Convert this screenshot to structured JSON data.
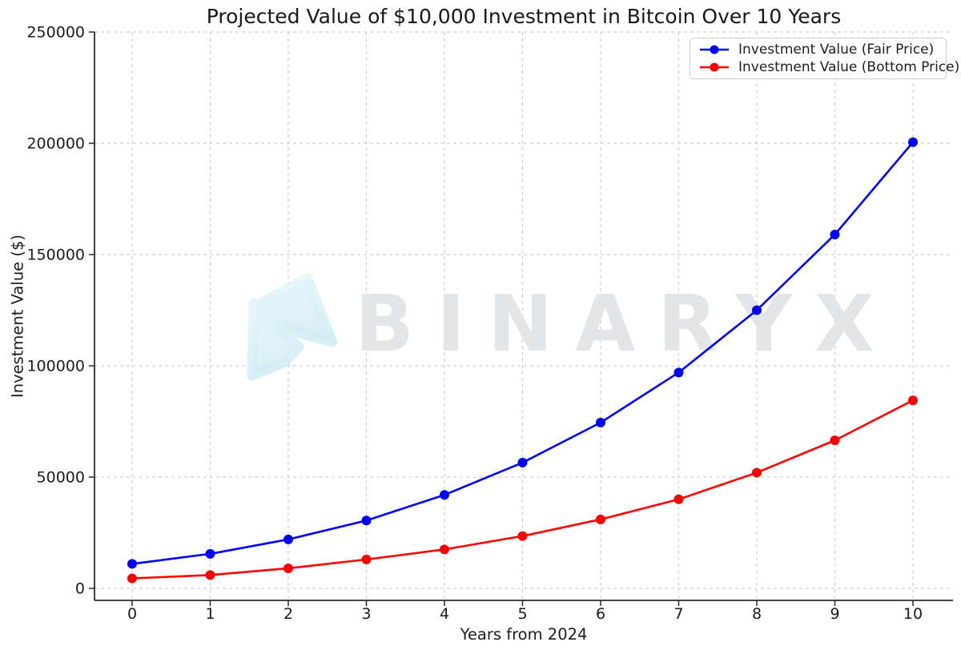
{
  "title": "Projected Value of $10,000 Investment in Bitcoin Over 10 Years",
  "watermark": {
    "text": "BINARYX"
  },
  "chart_data": {
    "type": "line",
    "title": "Projected Value of $10,000 Investment in Bitcoin Over 10 Years",
    "xlabel": "Years from 2024",
    "ylabel": "Investment Value ($)",
    "x": [
      0,
      1,
      2,
      3,
      4,
      5,
      6,
      7,
      8,
      9,
      10
    ],
    "series": [
      {
        "name": "Investment Value (Fair Price)",
        "color": "#0000ff",
        "values": [
          11000,
          15500,
          22000,
          30500,
          42000,
          56500,
          74500,
          97000,
          125000,
          159000,
          200500
        ]
      },
      {
        "name": "Investment Value (Bottom Price)",
        "color": "#ff0000",
        "values": [
          4500,
          6000,
          9000,
          13000,
          17500,
          23500,
          31000,
          40000,
          52000,
          66500,
          84500
        ]
      }
    ],
    "xticks": [
      0,
      1,
      2,
      3,
      4,
      5,
      6,
      7,
      8,
      9,
      10
    ],
    "yticks": [
      0,
      50000,
      100000,
      150000,
      200000,
      250000
    ],
    "ylim": [
      0,
      250000
    ],
    "xlim": [
      -0.5,
      10.5
    ],
    "grid": true,
    "grid_style": "dashed",
    "legend_position": "upper right",
    "marker": "o"
  },
  "colors": {
    "fair_line": "#0000ff",
    "bottom_line": "#ff0000",
    "grid": "#d0d0d0",
    "spine": "#2b2b2b",
    "text": "#1a1a1a",
    "watermark_text": "#e3e6e9",
    "watermark_logo": "#d7eef6",
    "legend_border": "#cccccc",
    "background": "#ffffff"
  }
}
